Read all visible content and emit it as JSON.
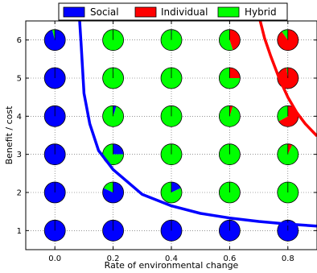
{
  "chart_data": {
    "type": "scatter",
    "xlabel": "Rate of environmental change",
    "ylabel": "Benefit / cost",
    "xlim": [
      -0.1,
      0.9
    ],
    "ylim": [
      0.5,
      6.5
    ],
    "x_ticks": [
      0.0,
      0.2,
      0.4,
      0.6,
      0.8
    ],
    "x_tick_labels": [
      "0.0",
      "0.2",
      "0.4",
      "0.6",
      "0.8"
    ],
    "y_ticks": [
      1,
      2,
      3,
      4,
      5,
      6
    ],
    "y_tick_labels": [
      "1",
      "2",
      "3",
      "4",
      "5",
      "6"
    ],
    "grid": true,
    "legend_position": "top",
    "legend": [
      {
        "name": "Social",
        "color": "#0000ff"
      },
      {
        "name": "Individual",
        "color": "#ff0000"
      },
      {
        "name": "Hybrid",
        "color": "#00ff00"
      }
    ],
    "pie_grid": [
      {
        "x": 0.0,
        "y": 6,
        "social": 0.96,
        "individual": 0.0,
        "hybrid": 0.04
      },
      {
        "x": 0.0,
        "y": 5,
        "social": 1.0,
        "individual": 0.0,
        "hybrid": 0.0
      },
      {
        "x": 0.0,
        "y": 4,
        "social": 1.0,
        "individual": 0.0,
        "hybrid": 0.0
      },
      {
        "x": 0.0,
        "y": 3,
        "social": 1.0,
        "individual": 0.0,
        "hybrid": 0.0
      },
      {
        "x": 0.0,
        "y": 2,
        "social": 1.0,
        "individual": 0.0,
        "hybrid": 0.0
      },
      {
        "x": 0.0,
        "y": 1,
        "social": 1.0,
        "individual": 0.0,
        "hybrid": 0.0
      },
      {
        "x": 0.2,
        "y": 6,
        "social": 0.0,
        "individual": 0.0,
        "hybrid": 1.0
      },
      {
        "x": 0.2,
        "y": 5,
        "social": 0.01,
        "individual": 0.0,
        "hybrid": 0.99
      },
      {
        "x": 0.2,
        "y": 4,
        "social": 0.05,
        "individual": 0.0,
        "hybrid": 0.95
      },
      {
        "x": 0.2,
        "y": 3,
        "social": 0.25,
        "individual": 0.0,
        "hybrid": 0.75
      },
      {
        "x": 0.2,
        "y": 2,
        "social": 0.82,
        "individual": 0.0,
        "hybrid": 0.18
      },
      {
        "x": 0.2,
        "y": 1,
        "social": 1.0,
        "individual": 0.0,
        "hybrid": 0.0
      },
      {
        "x": 0.4,
        "y": 6,
        "social": 0.01,
        "individual": 0.0,
        "hybrid": 0.99
      },
      {
        "x": 0.4,
        "y": 5,
        "social": 0.0,
        "individual": 0.0,
        "hybrid": 1.0
      },
      {
        "x": 0.4,
        "y": 4,
        "social": 0.0,
        "individual": 0.0,
        "hybrid": 1.0
      },
      {
        "x": 0.4,
        "y": 3,
        "social": 0.0,
        "individual": 0.0,
        "hybrid": 1.0
      },
      {
        "x": 0.4,
        "y": 2,
        "social": 0.18,
        "individual": 0.0,
        "hybrid": 0.82
      },
      {
        "x": 0.4,
        "y": 1,
        "social": 1.0,
        "individual": 0.0,
        "hybrid": 0.0
      },
      {
        "x": 0.6,
        "y": 6,
        "social": 0.0,
        "individual": 0.45,
        "hybrid": 0.55
      },
      {
        "x": 0.6,
        "y": 5,
        "social": 0.0,
        "individual": 0.25,
        "hybrid": 0.75
      },
      {
        "x": 0.6,
        "y": 4,
        "social": 0.0,
        "individual": 0.05,
        "hybrid": 0.95
      },
      {
        "x": 0.6,
        "y": 3,
        "social": 0.0,
        "individual": 0.0,
        "hybrid": 1.0
      },
      {
        "x": 0.6,
        "y": 2,
        "social": 0.0,
        "individual": 0.0,
        "hybrid": 1.0
      },
      {
        "x": 0.6,
        "y": 1,
        "social": 1.0,
        "individual": 0.0,
        "hybrid": 0.0
      },
      {
        "x": 0.8,
        "y": 6,
        "social": 0.0,
        "individual": 0.9,
        "hybrid": 0.1
      },
      {
        "x": 0.8,
        "y": 5,
        "social": 0.0,
        "individual": 0.98,
        "hybrid": 0.02
      },
      {
        "x": 0.8,
        "y": 4,
        "social": 0.0,
        "individual": 0.67,
        "hybrid": 0.33
      },
      {
        "x": 0.8,
        "y": 3,
        "social": 0.0,
        "individual": 0.07,
        "hybrid": 0.93
      },
      {
        "x": 0.8,
        "y": 2,
        "social": 0.0,
        "individual": 0.0,
        "hybrid": 1.0
      },
      {
        "x": 0.8,
        "y": 1,
        "social": 1.0,
        "individual": 0.0,
        "hybrid": 0.0
      }
    ],
    "boundary_curves": [
      {
        "name": "Social",
        "color": "#0000ff",
        "points": [
          [
            0.085,
            6.5
          ],
          [
            0.09,
            5.9
          ],
          [
            0.1,
            4.6
          ],
          [
            0.12,
            3.8
          ],
          [
            0.15,
            3.1
          ],
          [
            0.2,
            2.6
          ],
          [
            0.3,
            1.95
          ],
          [
            0.4,
            1.65
          ],
          [
            0.5,
            1.45
          ],
          [
            0.6,
            1.33
          ],
          [
            0.7,
            1.24
          ],
          [
            0.8,
            1.17
          ],
          [
            0.9,
            1.12
          ]
        ]
      },
      {
        "name": "Individual",
        "color": "#ff0000",
        "points": [
          [
            0.705,
            6.5
          ],
          [
            0.72,
            6.05
          ],
          [
            0.74,
            5.6
          ],
          [
            0.77,
            5.0
          ],
          [
            0.8,
            4.5
          ],
          [
            0.83,
            4.1
          ],
          [
            0.86,
            3.8
          ],
          [
            0.9,
            3.48
          ]
        ]
      }
    ]
  }
}
